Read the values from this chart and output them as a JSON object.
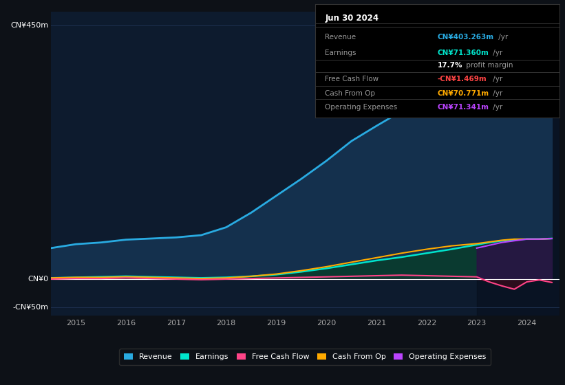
{
  "bg_color": "#0d1117",
  "plot_bg_color": "#0d1b2e",
  "grid_color": "#1e3050",
  "title_box_bg": "#000000",
  "title_box_border": "#333333",
  "date_label": "Jun 30 2024",
  "info_rows": [
    {
      "label": "Revenue",
      "value": "CN¥403.263m",
      "suffix": " /yr",
      "value_color": "#29abe2"
    },
    {
      "label": "Earnings",
      "value": "CN¥71.360m",
      "suffix": " /yr",
      "value_color": "#00e5cc"
    },
    {
      "label": "",
      "value": "17.7%",
      "suffix": " profit margin",
      "value_color": "#ffffff"
    },
    {
      "label": "Free Cash Flow",
      "value": "-CN¥1.469m",
      "suffix": " /yr",
      "value_color": "#ff4444"
    },
    {
      "label": "Cash From Op",
      "value": "CN¥70.771m",
      "suffix": " /yr",
      "value_color": "#ffaa00"
    },
    {
      "label": "Operating Expenses",
      "value": "CN¥71.341m",
      "suffix": " /yr",
      "value_color": "#bb44ff"
    }
  ],
  "ylim": [
    -65,
    475
  ],
  "xlim": [
    2014.5,
    2024.65
  ],
  "ytick_vals": [
    -50,
    0,
    450
  ],
  "ytick_labels": [
    "-CN¥50m",
    "CN¥0",
    "CN¥450m"
  ],
  "xtick_vals": [
    2015,
    2016,
    2017,
    2018,
    2019,
    2020,
    2021,
    2022,
    2023,
    2024
  ],
  "years": [
    2014.5,
    2015.0,
    2015.5,
    2016.0,
    2016.5,
    2017.0,
    2017.5,
    2018.0,
    2018.5,
    2019.0,
    2019.5,
    2020.0,
    2020.5,
    2021.0,
    2021.5,
    2022.0,
    2022.5,
    2023.0,
    2023.25,
    2023.5,
    2023.75,
    2024.0,
    2024.25,
    2024.5
  ],
  "revenue": [
    55,
    62,
    65,
    70,
    72,
    74,
    78,
    92,
    118,
    148,
    178,
    210,
    245,
    272,
    298,
    318,
    332,
    346,
    357,
    372,
    387,
    397,
    403,
    410
  ],
  "earnings": [
    2,
    3,
    4,
    5,
    4,
    3,
    2,
    3,
    5,
    8,
    13,
    19,
    26,
    33,
    39,
    46,
    53,
    61,
    65,
    68,
    70,
    71,
    71,
    72
  ],
  "free_cash_flow": [
    0,
    1,
    1,
    2,
    1,
    0,
    -1,
    0,
    1,
    2,
    3,
    4,
    5,
    6,
    7,
    6,
    5,
    4,
    -5,
    -12,
    -18,
    -5,
    -1.5,
    -6
  ],
  "cash_from_op": [
    2,
    3,
    3,
    4,
    3,
    2,
    1,
    2,
    5,
    9,
    15,
    22,
    30,
    38,
    46,
    53,
    59,
    63,
    66,
    69,
    71,
    71,
    71,
    72
  ],
  "operating_expenses_x": [
    2023.0,
    2023.25,
    2023.5,
    2023.75,
    2024.0,
    2024.25,
    2024.5
  ],
  "operating_expenses_y": [
    55,
    60,
    65,
    68,
    71,
    71,
    72
  ],
  "forecast_start": 2023.0,
  "revenue_color": "#29abe2",
  "earnings_color": "#00e5cc",
  "fcf_color": "#ff4488",
  "cashop_color": "#ffaa00",
  "opex_color": "#bb44ff",
  "revenue_fill": "#14304d",
  "earnings_fill": "#0a3a30",
  "opex_fill": "#2a1245",
  "legend_items": [
    {
      "label": "Revenue",
      "color": "#29abe2"
    },
    {
      "label": "Earnings",
      "color": "#00e5cc"
    },
    {
      "label": "Free Cash Flow",
      "color": "#ff4488"
    },
    {
      "label": "Cash From Op",
      "color": "#ffaa00"
    },
    {
      "label": "Operating Expenses",
      "color": "#bb44ff"
    }
  ]
}
